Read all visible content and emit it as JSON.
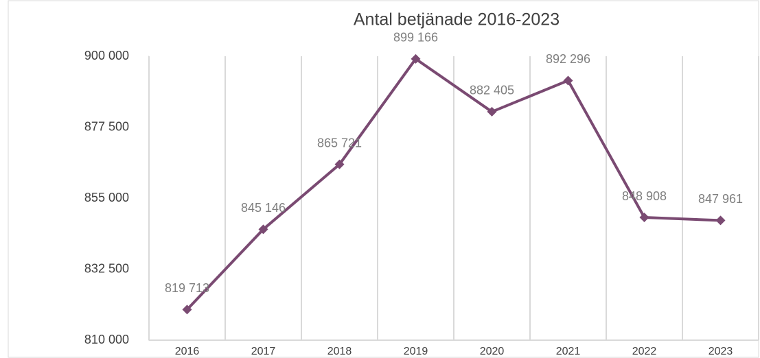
{
  "chart_data": {
    "type": "line",
    "title": "Antal betjänade 2016-2023",
    "categories": [
      "2016",
      "2017",
      "2018",
      "2019",
      "2020",
      "2021",
      "2022",
      "2023"
    ],
    "series": [
      {
        "name": "Antal betjänade",
        "color": "#7a4a72",
        "values": [
          819713,
          845146,
          865721,
          899166,
          882405,
          892296,
          848908,
          847961
        ],
        "value_labels": [
          "819 713",
          "845 146",
          "865 721",
          "899 166",
          "882 405",
          "892 296",
          "848 908",
          "847 961"
        ]
      }
    ],
    "ylim": [
      810000,
      900000
    ],
    "yticks": [
      {
        "value": 810000,
        "label": "810 000"
      },
      {
        "value": 832500,
        "label": "832 500"
      },
      {
        "value": 855000,
        "label": "855 000"
      },
      {
        "value": 877500,
        "label": "877 500"
      },
      {
        "value": 900000,
        "label": "900 000"
      }
    ],
    "grid": true
  }
}
